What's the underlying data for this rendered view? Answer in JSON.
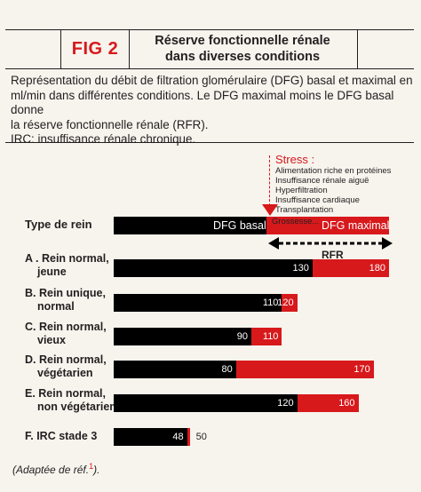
{
  "header": {
    "fig_label": "FIG 2",
    "title_line1": "Réserve fonctionnelle rénale",
    "title_line2": "dans diverses conditions"
  },
  "description": {
    "line1": "Représentation du débit de filtration glomérulaire (DFG) basal et maximal en",
    "line2": "ml/min dans différentes conditions. Le DFG maximal moins le DFG basal donne",
    "line3": "la réserve fonctionnelle rénale (RFR).",
    "line4": "IRC: insuffisance rénale chronique."
  },
  "stress": {
    "title": "Stress :",
    "items": [
      "Alimentation riche en protéines",
      "Insuffisance rénale aiguë",
      "Hyperfiltration",
      "Insuffisance cardiaque",
      "Transplantation",
      "Grossesse..."
    ]
  },
  "footer": {
    "text": "(Adaptée de réf.",
    "ref": "1",
    "close": ")."
  },
  "chart_data": {
    "type": "bar",
    "stacked": true,
    "orientation": "horizontal",
    "header_row": {
      "label": "Type de rein",
      "basal_label": "DFG basal",
      "maximal_label": "DFG maximal",
      "rfr_label": "RFR"
    },
    "categories": [
      [
        "A . Rein normal,",
        "jeune"
      ],
      [
        "B. Rein unique,",
        "normal"
      ],
      [
        "C. Rein normal,",
        "vieux"
      ],
      [
        "D. Rein normal,",
        "végétarien"
      ],
      [
        "E. Rein normal,",
        "non végétarien"
      ],
      [
        "F. IRC stade 3"
      ]
    ],
    "series": [
      {
        "name": "DFG basal",
        "values": [
          130,
          110,
          90,
          80,
          120,
          48
        ],
        "color": "#000000"
      },
      {
        "name": "DFG maximal",
        "values": [
          180,
          120,
          110,
          170,
          160,
          50
        ],
        "color": "#d7191c"
      }
    ],
    "value_labels": {
      "basal": [
        "130",
        "110",
        "90",
        "80",
        "120",
        "48"
      ],
      "maximal": [
        "180",
        "120",
        "110",
        "170",
        "160",
        "50"
      ]
    }
  }
}
